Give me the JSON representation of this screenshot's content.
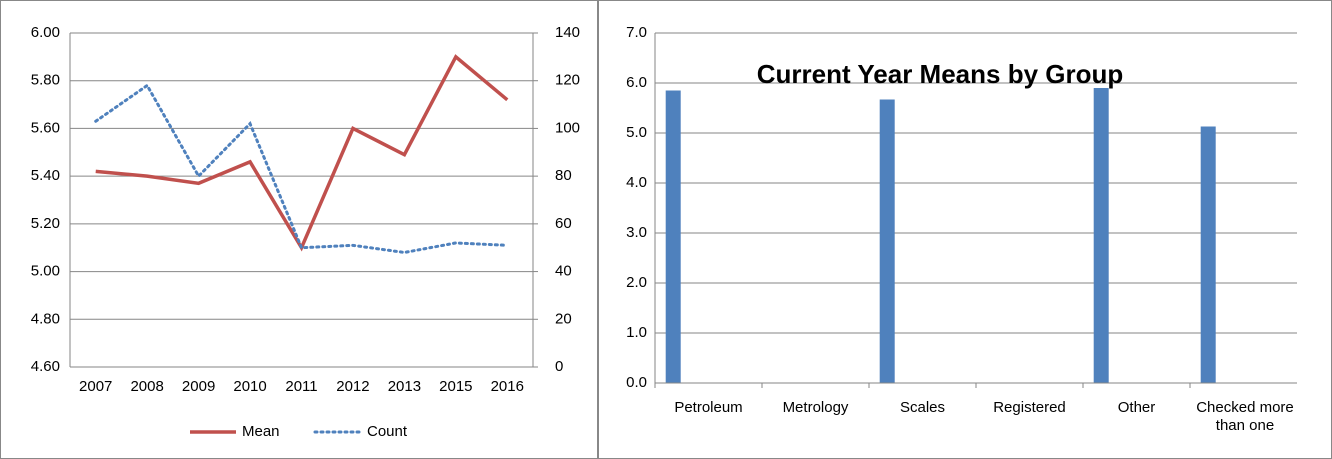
{
  "chart_data": [
    {
      "type": "line",
      "categories": [
        "2007",
        "2008",
        "2009",
        "2010",
        "2011",
        "2012",
        "2013",
        "2015",
        "2016"
      ],
      "series": [
        {
          "name": "Mean",
          "color": "#c0504d",
          "values": [
            5.42,
            5.4,
            5.37,
            5.46,
            5.1,
            5.6,
            5.49,
            5.9,
            5.72
          ]
        },
        {
          "name": "Count",
          "color": "#4f81bd",
          "axis": "y2",
          "dashed": true,
          "values": [
            103,
            118,
            80,
            102,
            50,
            51,
            48,
            52,
            51
          ]
        }
      ],
      "ylim": [
        4.6,
        6.0
      ],
      "yticks": [
        {
          "value": 4.6,
          "label": "4.60"
        },
        {
          "value": 4.8,
          "label": "4.80"
        },
        {
          "value": 5.0,
          "label": "5.00"
        },
        {
          "value": 5.2,
          "label": "5.20"
        },
        {
          "value": 5.4,
          "label": "5.40"
        },
        {
          "value": 5.6,
          "label": "5.60"
        },
        {
          "value": 5.8,
          "label": "5.80"
        },
        {
          "value": 6.0,
          "label": "6.00"
        }
      ],
      "y2lim": [
        0,
        140
      ],
      "y2ticks": [
        0,
        20,
        40,
        60,
        80,
        100,
        120,
        140
      ],
      "grid": true,
      "legend": "bottom"
    },
    {
      "type": "bar",
      "title": "Current Year Means by Group",
      "categories": [
        "Petroleum",
        "Metrology",
        "Scales",
        "Registered",
        "Other",
        "Checked more than one"
      ],
      "values": [
        5.85,
        null,
        5.67,
        null,
        5.9,
        5.13
      ],
      "color": "#4f81bd",
      "ylim": [
        0,
        7
      ],
      "yticks": [
        {
          "value": 0,
          "label": "0.0"
        },
        {
          "value": 1,
          "label": "1.0"
        },
        {
          "value": 2,
          "label": "2.0"
        },
        {
          "value": 3,
          "label": "3.0"
        },
        {
          "value": 4,
          "label": "4.0"
        },
        {
          "value": 5,
          "label": "5.0"
        },
        {
          "value": 6,
          "label": "6.0"
        },
        {
          "value": 7,
          "label": "7.0"
        }
      ],
      "grid": true
    }
  ]
}
